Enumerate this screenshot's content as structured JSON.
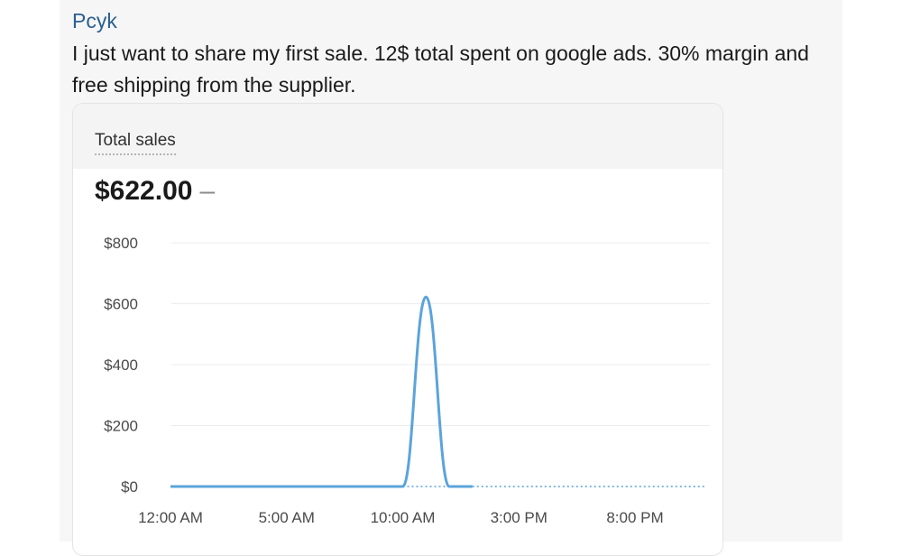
{
  "post": {
    "author": "Pcyk",
    "message": "I just want to share my first sale. 12$ total spent on google ads. 30% margin and free shipping from the supplier."
  },
  "card": {
    "title": "Total sales",
    "total": "$622.00",
    "total_dash": "–"
  },
  "chart_data": {
    "type": "line",
    "ylabel": "",
    "xlabel": "",
    "y_ticks": [
      "$0",
      "$200",
      "$400",
      "$600",
      "$800"
    ],
    "y_tick_values": [
      0,
      200,
      400,
      600,
      800
    ],
    "ylim": [
      0,
      800
    ],
    "x_ticks": [
      "12:00 AM",
      "5:00 AM",
      "10:00 AM",
      "3:00 PM",
      "8:00 PM"
    ],
    "x_tick_hours": [
      0,
      5,
      10,
      15,
      20
    ],
    "xlim_hours": [
      0,
      23
    ],
    "series": [
      {
        "hours": [
          0,
          1,
          2,
          3,
          4,
          5,
          6,
          7,
          8,
          9,
          10,
          11,
          12,
          13
        ],
        "values": [
          0,
          0,
          0,
          0,
          0,
          0,
          0,
          0,
          0,
          0,
          0,
          622,
          0,
          0
        ],
        "color": "#5ba4db",
        "style": "solid"
      },
      {
        "hours": [
          10,
          12
        ],
        "values": [
          0,
          0
        ],
        "color": "#7fb8e3",
        "style": "dotted"
      },
      {
        "hours": [
          13,
          23
        ],
        "values": [
          0,
          0
        ],
        "color": "#7fb8e3",
        "style": "dotted"
      }
    ],
    "grid": true
  }
}
